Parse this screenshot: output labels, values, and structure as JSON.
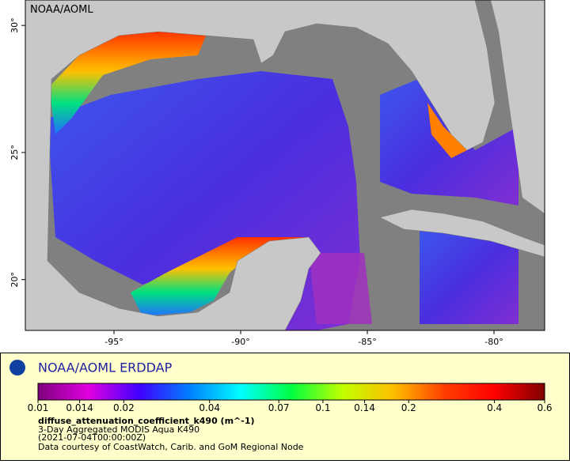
{
  "map": {
    "watermark": "NOAA/AOML",
    "xlim": [
      -98.5,
      -78
    ],
    "ylim": [
      18,
      31
    ],
    "xticks": [
      {
        "value": -95,
        "label": "-95°"
      },
      {
        "value": -90,
        "label": "-90°"
      },
      {
        "value": -85,
        "label": "-85°"
      },
      {
        "value": -80,
        "label": "-80°"
      }
    ],
    "yticks": [
      {
        "value": 20,
        "label": "20°"
      },
      {
        "value": 25,
        "label": "25°"
      },
      {
        "value": 30,
        "label": "30°"
      }
    ]
  },
  "legend": {
    "title": "NOAA/AOML ERDDAP",
    "colorbar": {
      "scale": "log",
      "lim": [
        0.01,
        0.6
      ],
      "ticks": [
        0.01,
        0.014,
        0.02,
        0.04,
        0.07,
        0.1,
        0.14,
        0.2,
        0.4,
        0.6
      ],
      "colors": [
        "#7f007f",
        "#e000e0",
        "#4000ff",
        "#0080ff",
        "#00ffff",
        "#00ff40",
        "#c0ff00",
        "#ffc000",
        "#ff4000",
        "#ff0000",
        "#800000"
      ]
    },
    "variable": "diffuse_attenuation_coefficient_k490 (m^-1)",
    "lines": [
      "3-Day Aggregated MODIS Aqua K490",
      "(2021-07-04T00:00:00Z)",
      "Data courtesy of CoastWatch, Carib. and GoM Regional Node"
    ]
  }
}
